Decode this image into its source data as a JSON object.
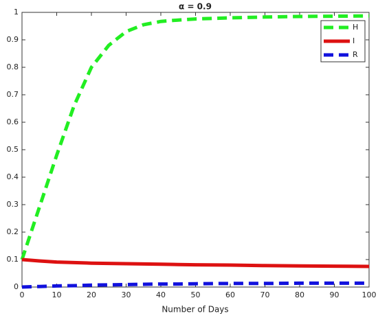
{
  "chart_data": {
    "type": "line",
    "title": "α = 0.9",
    "x_label": "Number of Days",
    "x": [
      0,
      5,
      10,
      15,
      20,
      25,
      30,
      35,
      40,
      45,
      50,
      60,
      70,
      80,
      90,
      100
    ],
    "series": [
      {
        "name": "H",
        "color": "#22ee22",
        "line_style": "dashed",
        "values": [
          0.1,
          0.29,
          0.48,
          0.66,
          0.8,
          0.88,
          0.93,
          0.955,
          0.967,
          0.972,
          0.976,
          0.98,
          0.983,
          0.985,
          0.986,
          0.987
        ]
      },
      {
        "name": "I",
        "color": "#dd1111",
        "line_style": "solid",
        "values": [
          0.1,
          0.095,
          0.091,
          0.089,
          0.087,
          0.086,
          0.085,
          0.084,
          0.083,
          0.082,
          0.081,
          0.08,
          0.078,
          0.077,
          0.076,
          0.075
        ]
      },
      {
        "name": "R",
        "color": "#1111dd",
        "line_style": "dashed",
        "values": [
          0,
          0.002,
          0.004,
          0.005,
          0.007,
          0.008,
          0.009,
          0.01,
          0.011,
          0.011,
          0.012,
          0.013,
          0.013,
          0.014,
          0.014,
          0.014
        ]
      }
    ],
    "xlim": [
      0,
      100
    ],
    "xticks": [
      0,
      10,
      20,
      30,
      40,
      50,
      60,
      70,
      80,
      90,
      100
    ],
    "ylim": [
      0,
      1
    ],
    "yticks": [
      0,
      0.1,
      0.2,
      0.3,
      0.4,
      0.5,
      0.6,
      0.7,
      0.8,
      0.9,
      1
    ],
    "grid": false,
    "legend_position": "top-right"
  }
}
